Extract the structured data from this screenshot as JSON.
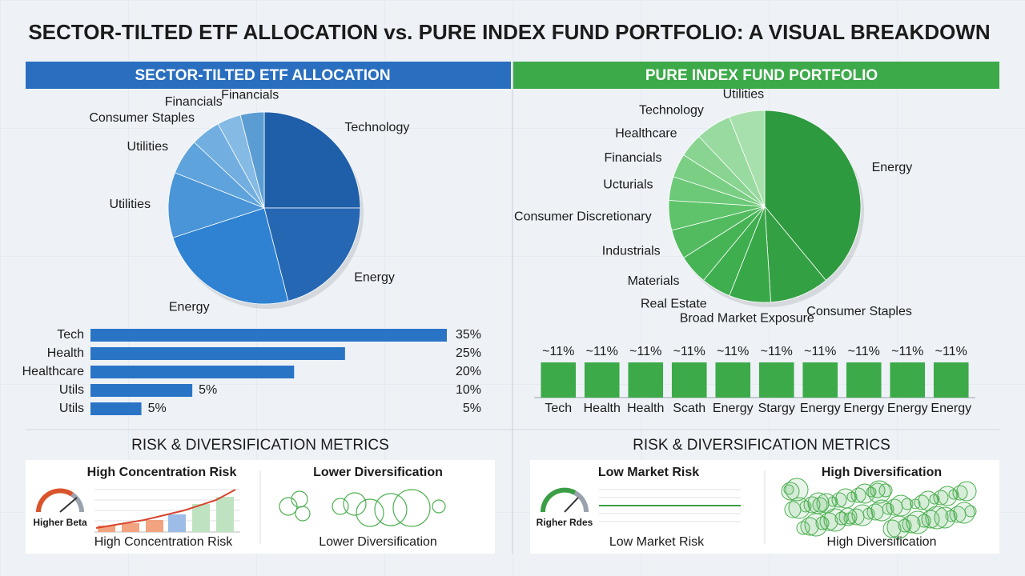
{
  "title": "SECTOR-TILTED ETF ALLOCATION vs. PURE INDEX FUND PORTFOLIO: A VISUAL BREAKDOWN",
  "panels": [
    {
      "heading": "SECTOR-TILTED ETF ALLOCATION",
      "metrics_title": "RISK & DIVERSIFICATION METRICS",
      "cards": [
        {
          "title": "High Concentration Risk",
          "gauge_label": "Higher Beta",
          "caption": "High Concentration Risk"
        },
        {
          "title": "Lower Diversification",
          "caption": "Lower Diversification"
        }
      ]
    },
    {
      "heading": "PURE INDEX FUND PORTFOLIO",
      "metrics_title": "RISK & DIVERSIFICATION METRICS",
      "cards": [
        {
          "title": "Low Market Risk",
          "gauge_label": "Righer Rdes",
          "caption": "Low Market Risk"
        },
        {
          "title": "High Diversification",
          "caption": "High Diversification"
        }
      ]
    }
  ],
  "chart_data": [
    {
      "type": "pie",
      "categories": [
        "Technology",
        "Energy",
        "Energy",
        "Utilities",
        "Utilities",
        "Consumer Staples",
        "Financials",
        "Financials"
      ],
      "values": [
        25,
        21,
        24,
        11,
        6,
        5,
        4,
        4
      ],
      "colors": [
        "#1f5ea8",
        "#2567b3",
        "#2f82d2",
        "#4a94d8",
        "#5fa3dc",
        "#72afe0",
        "#84bae4",
        "#5b9dd3"
      ]
    },
    {
      "type": "hbar",
      "categories": [
        "Tech",
        "Health",
        "Healthcare",
        "Utils",
        "Utils"
      ],
      "values": [
        35,
        25,
        20,
        10,
        5
      ],
      "value_labels": [
        "35%",
        "25%",
        "20%",
        "10%",
        "5%"
      ],
      "annotations": [
        "5%",
        "5%"
      ],
      "xlim": [
        0,
        35
      ],
      "color": "#2a74c6"
    },
    {
      "type": "pie",
      "categories": [
        "Energy",
        "Consumer Staples",
        "Broad Market Exposure",
        "Real Estate",
        "Materials",
        "Industrials",
        "Consumer Discretionary",
        "Ucturials",
        "Financials",
        "Healthcare",
        "Technology",
        "Utilities"
      ],
      "values": [
        39,
        10,
        7,
        5,
        5,
        5,
        5,
        4,
        4,
        4,
        6,
        6
      ],
      "colors": [
        "#2e9a3f",
        "#33a043",
        "#38a748",
        "#3fae4e",
        "#46b455",
        "#52bb5f",
        "#5ec36a",
        "#6cc977",
        "#7bcf84",
        "#89d491",
        "#98da9f",
        "#a8e0ad"
      ]
    },
    {
      "type": "bar",
      "categories": [
        "Tech",
        "Health",
        "Health",
        "Scath",
        "Energy",
        "Stargy",
        "Energy",
        "Energy",
        "Energy",
        "Energy"
      ],
      "values": [
        11,
        11,
        11,
        11,
        11,
        11,
        11,
        11,
        11,
        11
      ],
      "value_labels": [
        "~11%",
        "~11%",
        "~11%",
        "~11%",
        "~11%",
        "~11%",
        "~11%",
        "~11%",
        "~11%",
        "~11%"
      ],
      "ylim": [
        0,
        11
      ],
      "color": "#3daa4a"
    }
  ]
}
